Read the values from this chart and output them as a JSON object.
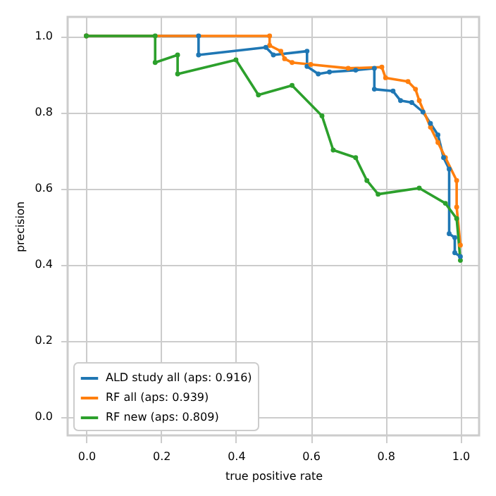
{
  "chart_data": {
    "type": "line",
    "xlabel": "true positive rate",
    "ylabel": "precision",
    "xlim": [
      -0.05,
      1.05
    ],
    "ylim": [
      -0.05,
      1.05
    ],
    "xticks": [
      {
        "value": 0,
        "label": "0.0"
      },
      {
        "value": 0.2,
        "label": "0.2"
      },
      {
        "value": 0.4,
        "label": "0.4"
      },
      {
        "value": 0.6,
        "label": "0.6"
      },
      {
        "value": 0.8,
        "label": "0.8"
      },
      {
        "value": 1,
        "label": "1.0"
      }
    ],
    "yticks": [
      {
        "value": 0,
        "label": "0.0"
      },
      {
        "value": 0.2,
        "label": "0.2"
      },
      {
        "value": 0.4,
        "label": "0.4"
      },
      {
        "value": 0.6,
        "label": "0.6"
      },
      {
        "value": 0.8,
        "label": "0.8"
      },
      {
        "value": 1,
        "label": "1.0"
      }
    ],
    "grid": true,
    "legend": "bottom left",
    "marker": "circle",
    "line_style": "solid",
    "series": [
      {
        "name": "ALD study all (aps: 0.916)",
        "color": "#1f77b4",
        "x": [
          0,
          0.3,
          0.3,
          0.48,
          0.5,
          0.59,
          0.59,
          0.62,
          0.65,
          0.72,
          0.77,
          0.77,
          0.82,
          0.84,
          0.87,
          0.9,
          0.92,
          0.94,
          0.955,
          0.97,
          0.97,
          0.985,
          0.985,
          1.0
        ],
        "values": [
          1,
          1,
          0.95,
          0.97,
          0.95,
          0.96,
          0.92,
          0.9,
          0.905,
          0.91,
          0.915,
          0.86,
          0.855,
          0.83,
          0.825,
          0.8,
          0.77,
          0.74,
          0.68,
          0.65,
          0.48,
          0.47,
          0.43,
          0.42
        ]
      },
      {
        "name": "RF all (aps: 0.939)",
        "color": "#ff7f0e",
        "x": [
          0,
          0.49,
          0.49,
          0.52,
          0.53,
          0.55,
          0.6,
          0.7,
          0.79,
          0.8,
          0.86,
          0.88,
          0.89,
          0.92,
          0.94,
          0.96,
          0.99,
          0.99,
          1.0
        ],
        "values": [
          1,
          1,
          0.975,
          0.96,
          0.94,
          0.93,
          0.925,
          0.915,
          0.918,
          0.89,
          0.88,
          0.86,
          0.83,
          0.76,
          0.72,
          0.68,
          0.62,
          0.55,
          0.45
        ]
      },
      {
        "name": "RF new (aps: 0.809)",
        "color": "#2ca02c",
        "x": [
          0,
          0.184,
          0.184,
          0.244,
          0.244,
          0.4,
          0.46,
          0.55,
          0.63,
          0.66,
          0.72,
          0.75,
          0.78,
          0.89,
          0.96,
          0.99,
          1.0
        ],
        "values": [
          1,
          1,
          0.93,
          0.95,
          0.9,
          0.937,
          0.845,
          0.87,
          0.79,
          0.7,
          0.68,
          0.62,
          0.584,
          0.6,
          0.56,
          0.52,
          0.41
        ]
      }
    ]
  }
}
